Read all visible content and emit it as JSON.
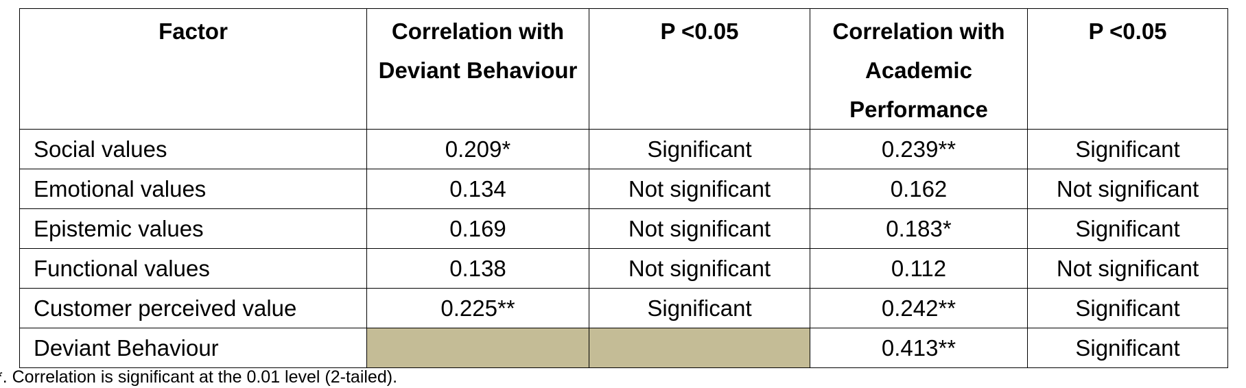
{
  "table": {
    "header": [
      "Factor",
      "Correlation with Deviant Behaviour",
      "P <0.05",
      "Correlation with Academic Performance",
      "P <0.05"
    ],
    "rows": [
      [
        "Social values",
        "0.209*",
        "Significant",
        "0.239**",
        "Significant"
      ],
      [
        "Emotional values",
        "0.134",
        "Not significant",
        "0.162",
        "Not significant"
      ],
      [
        "Epistemic values",
        "0.169",
        "Not significant",
        "0.183*",
        "Significant"
      ],
      [
        "Functional values",
        "0.138",
        "Not significant",
        "0.112",
        "Not significant"
      ],
      [
        "Customer perceived value",
        "0.225**",
        "Significant",
        "0.242**",
        "Significant"
      ],
      [
        "Deviant Behaviour",
        null,
        null,
        "0.413**",
        "Significant"
      ]
    ]
  },
  "footnote": "*. Correlation is significant at the 0.01 level (2-tailed)."
}
